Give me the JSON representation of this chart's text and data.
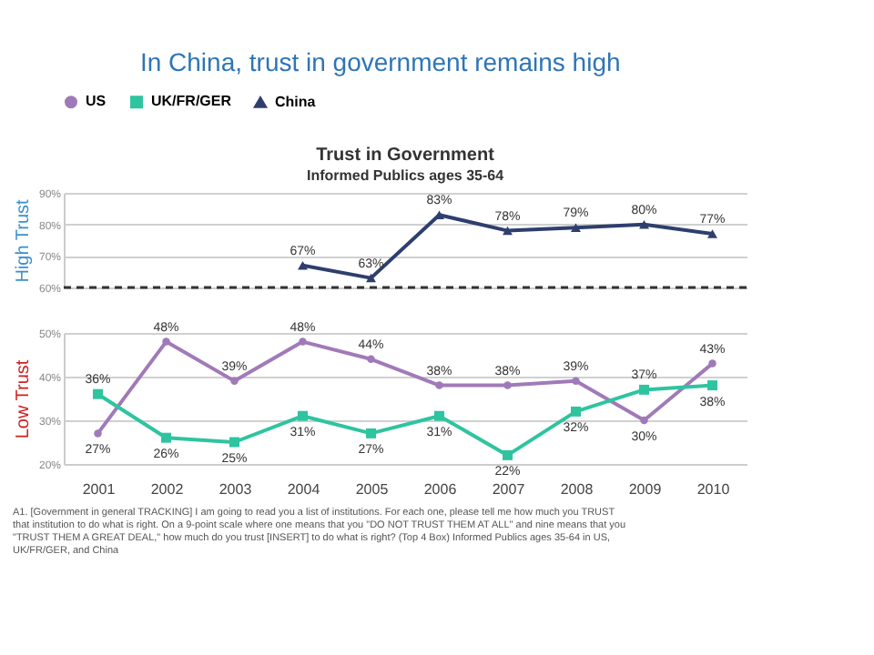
{
  "chart_data": [
    {
      "type": "line",
      "title": "In China, trust in government remains high",
      "subtitle": "Trust in Government",
      "annotations": [
        "Informed Publics ages 35-64"
      ],
      "ylabel": "High Trust",
      "categories": [
        "2001",
        "2002",
        "2003",
        "2004",
        "2005",
        "2006",
        "2007",
        "2008",
        "2009",
        "2010"
      ],
      "series": [
        {
          "name": "China",
          "color": "#2e3f6e",
          "marker": "triangle",
          "values": [
            null,
            null,
            null,
            67,
            63,
            83,
            78,
            79,
            80,
            77
          ],
          "value_labels": [
            null,
            null,
            null,
            "67%",
            "63%",
            "83%",
            "78%",
            "79%",
            "80%",
            "77%"
          ]
        }
      ],
      "ylim": [
        60,
        90
      ],
      "yticks": [
        {
          "value": 60,
          "label": "60%"
        },
        {
          "value": 70,
          "label": "70%"
        },
        {
          "value": 80,
          "label": "80%"
        },
        {
          "value": 90,
          "label": "90%"
        }
      ],
      "grid": "y",
      "legend": "top",
      "tick_labels": "y",
      "line_style": "solid",
      "ref_lines": [
        {
          "axis": "y",
          "value": 60,
          "color": "#333333",
          "line_style": "dashed"
        }
      ]
    },
    {
      "type": "line",
      "ylabel": "Low Trust",
      "categories": [
        "2001",
        "2002",
        "2003",
        "2004",
        "2005",
        "2006",
        "2007",
        "2008",
        "2009",
        "2010"
      ],
      "series": [
        {
          "name": "US",
          "color": "#a07ab8",
          "marker": "circle",
          "values": [
            27,
            48,
            39,
            48,
            44,
            38,
            38,
            39,
            30,
            43
          ],
          "value_labels": [
            "27%",
            "48%",
            "39%",
            "48%",
            "44%",
            "38%",
            "38%",
            "39%",
            "30%",
            "43%"
          ]
        },
        {
          "name": "UK/FR/GER",
          "color": "#2ec4a0",
          "marker": "square",
          "values": [
            36,
            26,
            25,
            31,
            27,
            31,
            22,
            32,
            37,
            38
          ],
          "value_labels": [
            "36%",
            "26%",
            "25%",
            "31%",
            "27%",
            "31%",
            "22%",
            "32%",
            "37%",
            "38%"
          ]
        }
      ],
      "ylim": [
        20,
        50
      ],
      "yticks": [
        {
          "value": 20,
          "label": "20%"
        },
        {
          "value": 30,
          "label": "30%"
        },
        {
          "value": 40,
          "label": "40%"
        },
        {
          "value": 50,
          "label": "50%"
        }
      ],
      "grid": "y",
      "legend": "top",
      "line_style": "solid",
      "annotations": [
        "A1. [Government in general TRACKING] I am going to read you a list of institutions. For each one, please tell me how much you TRUST that institution to do what is right. On a 9-point scale where one means that you \"DO NOT TRUST THEM AT ALL\" and nine means that you \"TRUST THEM A GREAT DEAL,\" how much do you trust [INSERT] to do what is right? (Top 4 Box) Informed Publics ages 35-64 in US, UK/FR/GER, and China"
      ]
    }
  ]
}
